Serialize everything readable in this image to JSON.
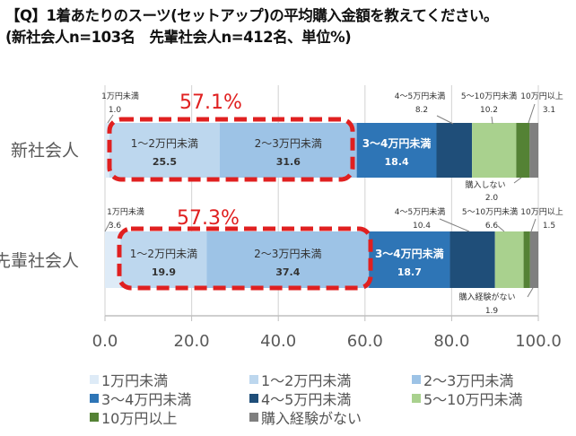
{
  "title_line1": "【Q】1着あたりのスーツ(セットアップ)の平均購入金額を教えてください。",
  "title_line2": "(新社会人n=103名　先輩社会人n=412名、単位%)",
  "chart_data": {
    "type": "bar",
    "orientation": "horizontal",
    "stacked": true,
    "categories": [
      "新社会人",
      "先輩社会人"
    ],
    "xlim": [
      0,
      100
    ],
    "x_ticks": [
      "0.0",
      "20.0",
      "40.0",
      "60.0",
      "80.0",
      "100.0"
    ],
    "grid": true,
    "legend_position": "bottom",
    "series": [
      {
        "name": "1万円未満",
        "color": "#deebf7",
        "values": [
          1.0,
          3.6
        ]
      },
      {
        "name": "1〜2万円未満",
        "color": "#bdd7ee",
        "values": [
          25.5,
          19.9
        ]
      },
      {
        "name": "2〜3万円未満",
        "color": "#9dc3e6",
        "values": [
          31.6,
          37.4
        ]
      },
      {
        "name": "3〜4万円未満",
        "color": "#2e75b6",
        "values": [
          18.4,
          18.7
        ]
      },
      {
        "name": "4〜5万円未満",
        "color": "#1f4e79",
        "values": [
          8.2,
          10.4
        ]
      },
      {
        "name": "5〜10万円未満",
        "color": "#a9d18e",
        "values": [
          10.2,
          6.6
        ]
      },
      {
        "name": "10万円以上",
        "color": "#548235",
        "values": [
          3.1,
          1.5
        ]
      },
      {
        "name": "購入経験がない",
        "color": "#7f7f7f",
        "values": [
          2.0,
          1.9
        ]
      }
    ],
    "data_labels": [
      [
        "1万円未満",
        "1〜2万円未満",
        "2〜3万円未満",
        "3〜4万円未満",
        "4〜5万円未満",
        "5〜10万円未満",
        "10万円以上",
        "購入しない"
      ],
      [
        "1万円未満",
        "1〜2万円未満",
        "2〜3万円未満",
        "3〜4万円未満",
        "4〜5万円未満",
        "5〜10万円未満",
        "10万円以上",
        "購入経験がない"
      ]
    ],
    "annotations": [
      {
        "text": "57.1%",
        "category": "新社会人",
        "covers": [
          "1〜2万円未満",
          "2〜3万円未満"
        ],
        "color": "#e02020"
      },
      {
        "text": "57.3%",
        "category": "先輩社会人",
        "covers": [
          "1〜2万円未満",
          "2〜3万円未満"
        ],
        "color": "#e02020"
      }
    ]
  }
}
